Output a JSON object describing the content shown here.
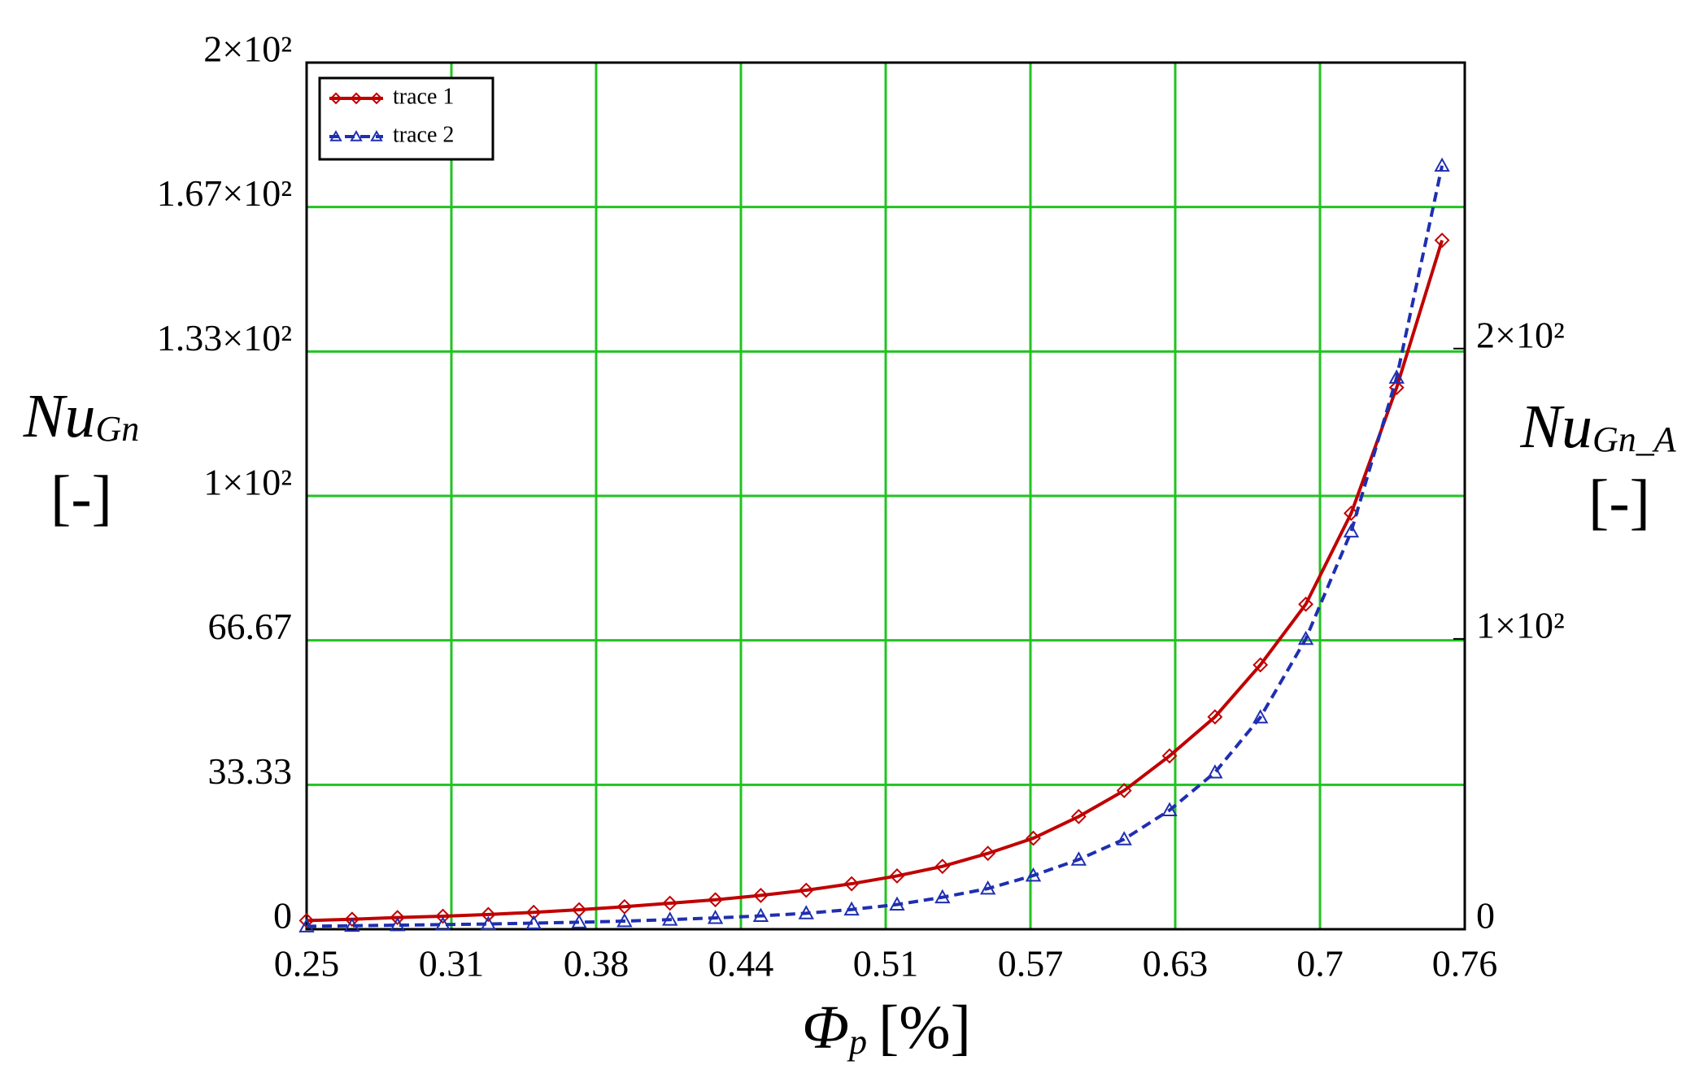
{
  "chart_data": {
    "type": "line",
    "x_label": "Φ",
    "x_label_sub": "p",
    "x_unit": "[%]",
    "y_label": "Nu",
    "y_label_sub": "Gn",
    "y_unit": "[-]",
    "y2_label": "Nu",
    "y2_label_sub": "Gn_A",
    "y2_unit": "[-]",
    "x": [
      0.25,
      0.27,
      0.29,
      0.31,
      0.33,
      0.35,
      0.37,
      0.39,
      0.41,
      0.43,
      0.45,
      0.47,
      0.49,
      0.51,
      0.53,
      0.55,
      0.57,
      0.59,
      0.61,
      0.63,
      0.65,
      0.67,
      0.69,
      0.71,
      0.73,
      0.75
    ],
    "series": [
      {
        "name": "trace 1",
        "color": "#c00000",
        "dash": "solid",
        "marker": "diamond",
        "axis": "y",
        "values": [
          2,
          2.3,
          2.7,
          3,
          3.4,
          3.9,
          4.5,
          5.2,
          6,
          6.8,
          7.8,
          9,
          10.5,
          12.3,
          14.5,
          17.5,
          21,
          26,
          32,
          40,
          49,
          61,
          75,
          96,
          125,
          159
        ]
      },
      {
        "name": "trace 2",
        "color": "#1f2fb0",
        "dash": "dashed",
        "marker": "triangle",
        "axis": "y2",
        "values": [
          1,
          1.2,
          1.4,
          1.6,
          1.8,
          2.1,
          2.4,
          2.8,
          3.3,
          3.9,
          4.6,
          5.5,
          6.8,
          8.5,
          11,
          14,
          18.5,
          24,
          31,
          41,
          54,
          73,
          100,
          137,
          190,
          263
        ]
      }
    ],
    "xlim": [
      0.25,
      0.76
    ],
    "xticks": [
      0.25,
      {
        "value": 0.31375,
        "label": "0.31"
      },
      {
        "value": 0.3775,
        "label": "0.38"
      },
      {
        "value": 0.44125,
        "label": "0.44"
      },
      {
        "value": 0.505,
        "label": "0.51"
      },
      {
        "value": 0.56875,
        "label": "0.57"
      },
      {
        "value": 0.6325,
        "label": "0.63"
      },
      {
        "value": 0.69625,
        "label": "0.7"
      },
      0.76
    ],
    "ylim": [
      0,
      200
    ],
    "yticks": [
      0,
      33.33,
      66.67,
      {
        "value": 100,
        "label": "1×10²"
      },
      {
        "value": 133.33,
        "label": "1.33×10²"
      },
      {
        "value": 166.67,
        "label": "1.67×10²"
      },
      {
        "value": 200,
        "label": "2×10²"
      }
    ],
    "y2lim": [
      0,
      298.5
    ],
    "y2ticks": [
      0,
      {
        "value": 100,
        "label": "1×10²"
      },
      {
        "value": 200,
        "label": "2×10²"
      }
    ],
    "grid": true,
    "grid_color": "#22c322",
    "legend": "upper left"
  }
}
